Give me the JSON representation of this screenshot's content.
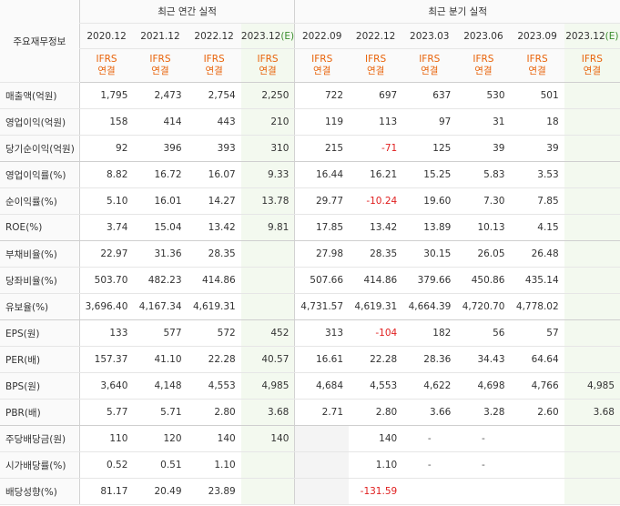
{
  "corner_label": "주요재무정보",
  "group_annual": "최근 연간 실적",
  "group_quarter": "최근 분기 실적",
  "columns": [
    {
      "date": "2020.12",
      "est": "",
      "std_top": "IFRS",
      "std_bot": "연결"
    },
    {
      "date": "2021.12",
      "est": "",
      "std_top": "IFRS",
      "std_bot": "연결"
    },
    {
      "date": "2022.12",
      "est": "",
      "std_top": "IFRS",
      "std_bot": "연결"
    },
    {
      "date": "2023.12",
      "est": "(E)",
      "std_top": "IFRS",
      "std_bot": "연결"
    },
    {
      "date": "2022.09",
      "est": "",
      "std_top": "IFRS",
      "std_bot": "연결"
    },
    {
      "date": "2022.12",
      "est": "",
      "std_top": "IFRS",
      "std_bot": "연결"
    },
    {
      "date": "2023.03",
      "est": "",
      "std_top": "IFRS",
      "std_bot": "연결"
    },
    {
      "date": "2023.06",
      "est": "",
      "std_top": "IFRS",
      "std_bot": "연결"
    },
    {
      "date": "2023.09",
      "est": "",
      "std_top": "IFRS",
      "std_bot": "연결"
    },
    {
      "date": "2023.12",
      "est": "(E)",
      "std_top": "IFRS",
      "std_bot": "연결"
    }
  ],
  "rows": [
    {
      "label": "매출액(억원)",
      "values": [
        "1,795",
        "2,473",
        "2,754",
        "2,250",
        "722",
        "697",
        "637",
        "530",
        "501",
        ""
      ]
    },
    {
      "label": "영업이익(억원)",
      "values": [
        "158",
        "414",
        "443",
        "210",
        "119",
        "113",
        "97",
        "31",
        "18",
        ""
      ]
    },
    {
      "label": "당기순이익(억원)",
      "values": [
        "92",
        "396",
        "393",
        "310",
        "215",
        "-71",
        "125",
        "39",
        "39",
        ""
      ]
    },
    {
      "label": "영업이익률(%)",
      "values": [
        "8.82",
        "16.72",
        "16.07",
        "9.33",
        "16.44",
        "16.21",
        "15.25",
        "5.83",
        "3.53",
        ""
      ]
    },
    {
      "label": "순이익률(%)",
      "values": [
        "5.10",
        "16.01",
        "14.27",
        "13.78",
        "29.77",
        "-10.24",
        "19.60",
        "7.30",
        "7.85",
        ""
      ]
    },
    {
      "label": "ROE(%)",
      "values": [
        "3.74",
        "15.04",
        "13.42",
        "9.81",
        "17.85",
        "13.42",
        "13.89",
        "10.13",
        "4.15",
        ""
      ]
    },
    {
      "label": "부채비율(%)",
      "values": [
        "22.97",
        "31.36",
        "28.35",
        "",
        "27.98",
        "28.35",
        "30.15",
        "26.05",
        "26.48",
        ""
      ]
    },
    {
      "label": "당좌비율(%)",
      "values": [
        "503.70",
        "482.23",
        "414.86",
        "",
        "507.66",
        "414.86",
        "379.66",
        "450.86",
        "435.14",
        ""
      ]
    },
    {
      "label": "유보율(%)",
      "values": [
        "3,696.40",
        "4,167.34",
        "4,619.31",
        "",
        "4,731.57",
        "4,619.31",
        "4,664.39",
        "4,720.70",
        "4,778.02",
        ""
      ]
    },
    {
      "label": "EPS(원)",
      "values": [
        "133",
        "577",
        "572",
        "452",
        "313",
        "-104",
        "182",
        "56",
        "57",
        ""
      ]
    },
    {
      "label": "PER(배)",
      "values": [
        "157.37",
        "41.10",
        "22.28",
        "40.57",
        "16.61",
        "22.28",
        "28.36",
        "34.43",
        "64.64",
        ""
      ]
    },
    {
      "label": "BPS(원)",
      "values": [
        "3,640",
        "4,148",
        "4,553",
        "4,985",
        "4,684",
        "4,553",
        "4,622",
        "4,698",
        "4,766",
        "4,985"
      ]
    },
    {
      "label": "PBR(배)",
      "values": [
        "5.77",
        "5.71",
        "2.80",
        "3.68",
        "2.71",
        "2.80",
        "3.66",
        "3.28",
        "2.60",
        "3.68"
      ]
    },
    {
      "label": "주당배당금(원)",
      "values": [
        "110",
        "120",
        "140",
        "140",
        "",
        "140",
        "-",
        "-",
        "",
        ""
      ]
    },
    {
      "label": "시가배당률(%)",
      "values": [
        "0.52",
        "0.51",
        "1.10",
        "",
        "",
        "1.10",
        "-",
        "-",
        "",
        ""
      ]
    },
    {
      "label": "배당성향(%)",
      "values": [
        "81.17",
        "20.49",
        "23.89",
        "",
        "",
        "-131.59",
        "",
        "",
        "",
        ""
      ]
    }
  ],
  "colors": {
    "ifrs": "#e8630a",
    "negative": "#e02020",
    "estimate_bg": "#f3f9ef",
    "estimate_mark": "#3a8d2e"
  }
}
